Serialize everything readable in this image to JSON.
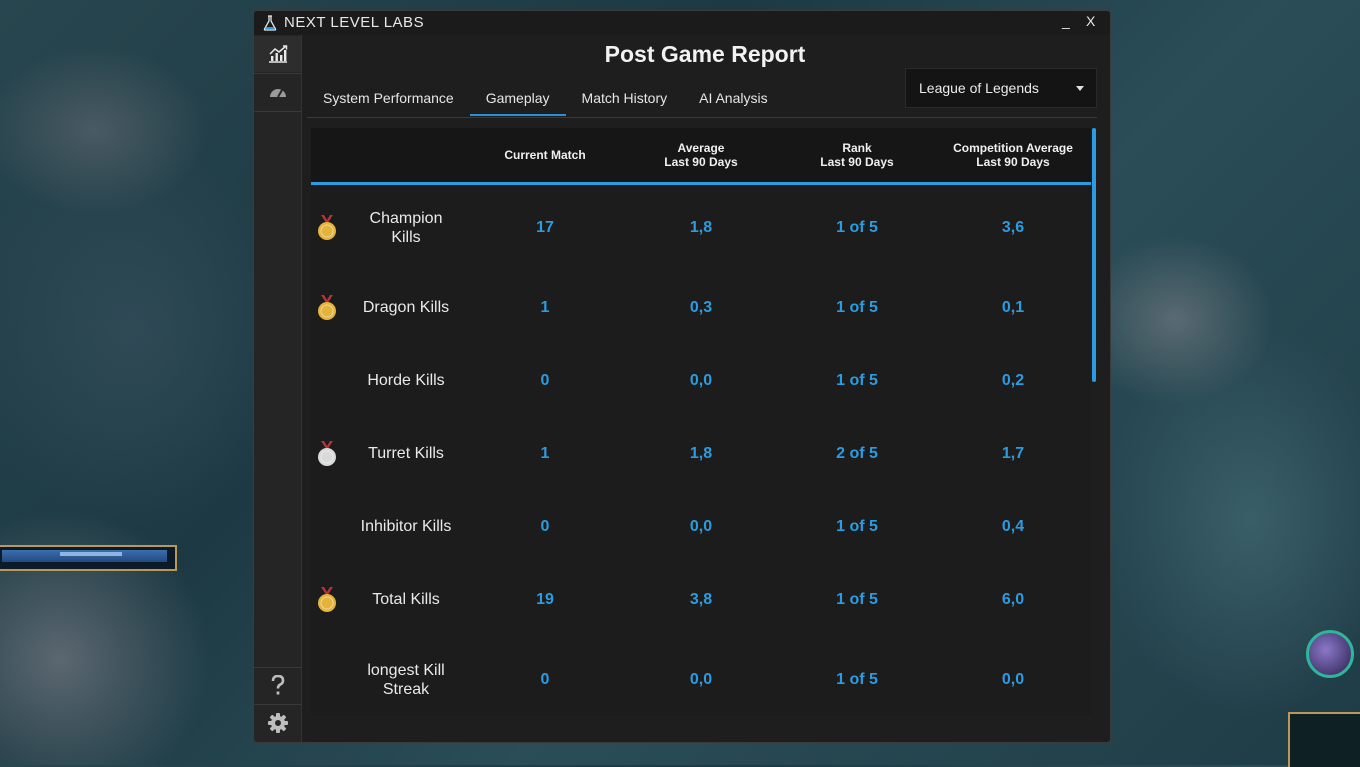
{
  "window": {
    "app_title": "NEXT LEVEL LABS",
    "minimize_label": "_",
    "close_label": "X"
  },
  "sidebar": {
    "items": [
      {
        "icon": "chart-icon",
        "active": true
      },
      {
        "icon": "speedometer-icon",
        "active": false
      }
    ],
    "bottom_items": [
      {
        "icon": "help-icon"
      },
      {
        "icon": "gear-icon"
      }
    ]
  },
  "page": {
    "title": "Post Game Report"
  },
  "tabs": [
    {
      "label": "System Performance",
      "active": false
    },
    {
      "label": "Gameplay",
      "active": true
    },
    {
      "label": "Match History",
      "active": false
    },
    {
      "label": "AI Analysis",
      "active": false
    }
  ],
  "game_select": {
    "value": "League of Legends"
  },
  "table": {
    "columns": [
      {
        "line1": "",
        "line2": ""
      },
      {
        "line1": "Current Match",
        "line2": ""
      },
      {
        "line1": "Average",
        "line2": "Last 90 Days"
      },
      {
        "line1": "Rank",
        "line2": "Last 90 Days"
      },
      {
        "line1": "Competition Average",
        "line2": "Last 90 Days"
      }
    ],
    "rows": [
      {
        "label_line1": "Champion",
        "label_line2": "Kills",
        "medal": "gold",
        "current": "17",
        "average": "1,8",
        "rank": "1 of 5",
        "competition": "3,6"
      },
      {
        "label_line1": "Dragon Kills",
        "label_line2": "",
        "medal": "gold",
        "current": "1",
        "average": "0,3",
        "rank": "1 of 5",
        "competition": "0,1"
      },
      {
        "label_line1": "Horde Kills",
        "label_line2": "",
        "medal": "none",
        "current": "0",
        "average": "0,0",
        "rank": "1 of 5",
        "competition": "0,2"
      },
      {
        "label_line1": "Turret Kills",
        "label_line2": "",
        "medal": "silver",
        "current": "1",
        "average": "1,8",
        "rank": "2 of 5",
        "competition": "1,7"
      },
      {
        "label_line1": "Inhibitor Kills",
        "label_line2": "",
        "medal": "none",
        "current": "0",
        "average": "0,0",
        "rank": "1 of 5",
        "competition": "0,4"
      },
      {
        "label_line1": "Total Kills",
        "label_line2": "",
        "medal": "gold",
        "current": "19",
        "average": "3,8",
        "rank": "1 of 5",
        "competition": "6,0"
      },
      {
        "label_line1": "longest Kill",
        "label_line2": "Streak",
        "medal": "none",
        "current": "0",
        "average": "0,0",
        "rank": "1 of 5",
        "competition": "0,0"
      }
    ]
  },
  "colors": {
    "accent": "#2c9be0",
    "gold_medal": "#e3b33c",
    "silver_medal": "#d9d9d9",
    "ribbon": "#b8323a"
  }
}
